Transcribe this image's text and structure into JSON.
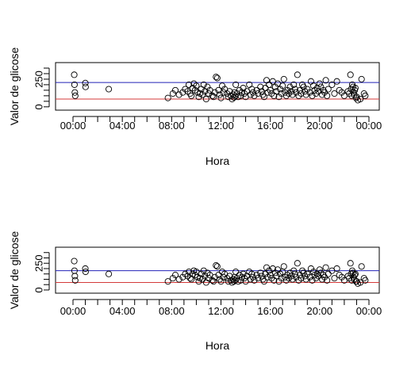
{
  "chart_data": [
    {
      "type": "scatter",
      "title": "",
      "xlabel": "Hora",
      "ylabel": "Valor de glicose",
      "x_ticks": [
        "00:00",
        "04:00",
        "08:00",
        "12:00",
        "16:00",
        "20:00",
        "00:00"
      ],
      "x_range_hours": [
        0,
        24
      ],
      "y_ticks": [
        "0",
        "250"
      ],
      "y_tick_values": [
        0,
        250
      ],
      "ylim": [
        -30,
        400
      ],
      "reference_lines": [
        {
          "value": 220,
          "color": "#2323b8"
        },
        {
          "value": 70,
          "color": "#d43a3a"
        }
      ],
      "points": [
        [
          0.1,
          290
        ],
        [
          0.12,
          200
        ],
        [
          0.15,
          130
        ],
        [
          0.18,
          100
        ],
        [
          1.0,
          215
        ],
        [
          1.02,
          180
        ],
        [
          2.9,
          160
        ],
        [
          7.7,
          80
        ],
        [
          8.1,
          120
        ],
        [
          8.3,
          150
        ],
        [
          8.6,
          110
        ],
        [
          8.9,
          130
        ],
        [
          9.1,
          160
        ],
        [
          9.3,
          140
        ],
        [
          9.4,
          200
        ],
        [
          9.5,
          120
        ],
        [
          9.6,
          100
        ],
        [
          9.7,
          170
        ],
        [
          9.8,
          210
        ],
        [
          9.9,
          150
        ],
        [
          10.0,
          190
        ],
        [
          10.1,
          130
        ],
        [
          10.2,
          90
        ],
        [
          10.3,
          120
        ],
        [
          10.4,
          160
        ],
        [
          10.5,
          110
        ],
        [
          10.6,
          200
        ],
        [
          10.7,
          140
        ],
        [
          10.8,
          70
        ],
        [
          10.9,
          180
        ],
        [
          11.0,
          120
        ],
        [
          11.1,
          150
        ],
        [
          11.3,
          100
        ],
        [
          11.4,
          90
        ],
        [
          11.5,
          130
        ],
        [
          11.6,
          270
        ],
        [
          11.7,
          260
        ],
        [
          11.8,
          150
        ],
        [
          11.9,
          110
        ],
        [
          12.0,
          80
        ],
        [
          12.1,
          190
        ],
        [
          12.2,
          130
        ],
        [
          12.3,
          160
        ],
        [
          12.5,
          120
        ],
        [
          12.6,
          90
        ],
        [
          12.7,
          140
        ],
        [
          12.8,
          100
        ],
        [
          12.9,
          70
        ],
        [
          13.0,
          110
        ],
        [
          13.05,
          85
        ],
        [
          13.1,
          130
        ],
        [
          13.15,
          95
        ],
        [
          13.2,
          200
        ],
        [
          13.3,
          120
        ],
        [
          13.4,
          90
        ],
        [
          13.5,
          150
        ],
        [
          13.6,
          100
        ],
        [
          13.7,
          130
        ],
        [
          13.8,
          170
        ],
        [
          13.9,
          120
        ],
        [
          14.0,
          90
        ],
        [
          14.1,
          140
        ],
        [
          14.3,
          200
        ],
        [
          14.4,
          110
        ],
        [
          14.5,
          160
        ],
        [
          14.6,
          130
        ],
        [
          14.7,
          100
        ],
        [
          14.9,
          150
        ],
        [
          15.0,
          120
        ],
        [
          15.2,
          180
        ],
        [
          15.3,
          140
        ],
        [
          15.4,
          110
        ],
        [
          15.5,
          90
        ],
        [
          15.6,
          170
        ],
        [
          15.7,
          240
        ],
        [
          15.8,
          130
        ],
        [
          15.9,
          200
        ],
        [
          16.0,
          150
        ],
        [
          16.1,
          120
        ],
        [
          16.2,
          230
        ],
        [
          16.3,
          100
        ],
        [
          16.4,
          180
        ],
        [
          16.5,
          140
        ],
        [
          16.6,
          210
        ],
        [
          16.7,
          90
        ],
        [
          16.8,
          160
        ],
        [
          16.9,
          120
        ],
        [
          17.0,
          190
        ],
        [
          17.1,
          250
        ],
        [
          17.2,
          130
        ],
        [
          17.3,
          100
        ],
        [
          17.4,
          150
        ],
        [
          17.5,
          120
        ],
        [
          17.6,
          180
        ],
        [
          17.7,
          140
        ],
        [
          17.8,
          110
        ],
        [
          17.9,
          200
        ],
        [
          18.0,
          160
        ],
        [
          18.1,
          130
        ],
        [
          18.2,
          290
        ],
        [
          18.3,
          100
        ],
        [
          18.4,
          150
        ],
        [
          18.5,
          120
        ],
        [
          18.6,
          200
        ],
        [
          18.7,
          180
        ],
        [
          18.8,
          140
        ],
        [
          18.9,
          110
        ],
        [
          19.0,
          160
        ],
        [
          19.2,
          130
        ],
        [
          19.3,
          230
        ],
        [
          19.4,
          100
        ],
        [
          19.5,
          190
        ],
        [
          19.6,
          150
        ],
        [
          19.7,
          120
        ],
        [
          19.8,
          170
        ],
        [
          19.9,
          140
        ],
        [
          20.0,
          210
        ],
        [
          20.1,
          180
        ],
        [
          20.2,
          110
        ],
        [
          20.3,
          150
        ],
        [
          20.4,
          130
        ],
        [
          20.5,
          240
        ],
        [
          20.6,
          100
        ],
        [
          20.7,
          160
        ],
        [
          21.0,
          200
        ],
        [
          21.2,
          120
        ],
        [
          21.4,
          230
        ],
        [
          21.6,
          150
        ],
        [
          21.8,
          130
        ],
        [
          22.0,
          100
        ],
        [
          22.3,
          140
        ],
        [
          22.4,
          120
        ],
        [
          22.5,
          290
        ],
        [
          22.55,
          160
        ],
        [
          22.6,
          100
        ],
        [
          22.65,
          200
        ],
        [
          22.7,
          180
        ],
        [
          22.75,
          130
        ],
        [
          22.8,
          110
        ],
        [
          22.85,
          150
        ],
        [
          22.9,
          170
        ],
        [
          22.95,
          80
        ],
        [
          23.0,
          90
        ],
        [
          23.1,
          60
        ],
        [
          23.3,
          70
        ],
        [
          23.4,
          250
        ],
        [
          23.6,
          120
        ],
        [
          23.7,
          100
        ]
      ]
    },
    {
      "type": "scatter",
      "title": "",
      "xlabel": "Hora",
      "ylabel": "Valor de glicose",
      "x_ticks": [
        "00:00",
        "04:00",
        "08:00",
        "12:00",
        "16:00",
        "20:00",
        "00:00"
      ],
      "x_range_hours": [
        0,
        24
      ],
      "y_ticks": [
        "0",
        "250"
      ],
      "y_tick_values": [
        0,
        250
      ],
      "ylim": [
        -30,
        400
      ],
      "reference_lines": [
        {
          "value": 180,
          "color": "#2323b8"
        },
        {
          "value": 70,
          "color": "#d43a3a"
        }
      ],
      "points": [
        [
          0.1,
          270
        ],
        [
          0.12,
          180
        ],
        [
          0.15,
          130
        ],
        [
          0.18,
          90
        ],
        [
          1.0,
          200
        ],
        [
          1.02,
          170
        ],
        [
          2.9,
          150
        ],
        [
          7.7,
          80
        ],
        [
          8.1,
          110
        ],
        [
          8.3,
          140
        ],
        [
          8.6,
          100
        ],
        [
          8.9,
          120
        ],
        [
          9.1,
          150
        ],
        [
          9.3,
          130
        ],
        [
          9.4,
          170
        ],
        [
          9.5,
          110
        ],
        [
          9.6,
          100
        ],
        [
          9.7,
          150
        ],
        [
          9.8,
          180
        ],
        [
          9.9,
          140
        ],
        [
          10.0,
          170
        ],
        [
          10.1,
          120
        ],
        [
          10.2,
          80
        ],
        [
          10.3,
          110
        ],
        [
          10.4,
          150
        ],
        [
          10.5,
          100
        ],
        [
          10.6,
          180
        ],
        [
          10.7,
          130
        ],
        [
          10.8,
          70
        ],
        [
          10.9,
          160
        ],
        [
          11.0,
          110
        ],
        [
          11.1,
          140
        ],
        [
          11.3,
          90
        ],
        [
          11.4,
          80
        ],
        [
          11.5,
          120
        ],
        [
          11.6,
          230
        ],
        [
          11.7,
          220
        ],
        [
          11.8,
          140
        ],
        [
          11.9,
          100
        ],
        [
          12.0,
          80
        ],
        [
          12.1,
          170
        ],
        [
          12.2,
          120
        ],
        [
          12.3,
          150
        ],
        [
          12.5,
          110
        ],
        [
          12.6,
          80
        ],
        [
          12.7,
          130
        ],
        [
          12.8,
          90
        ],
        [
          12.9,
          70
        ],
        [
          13.0,
          100
        ],
        [
          13.05,
          80
        ],
        [
          13.1,
          120
        ],
        [
          13.15,
          90
        ],
        [
          13.2,
          170
        ],
        [
          13.3,
          110
        ],
        [
          13.4,
          80
        ],
        [
          13.5,
          140
        ],
        [
          13.6,
          90
        ],
        [
          13.7,
          120
        ],
        [
          13.8,
          150
        ],
        [
          13.9,
          110
        ],
        [
          14.0,
          80
        ],
        [
          14.1,
          130
        ],
        [
          14.3,
          170
        ],
        [
          14.4,
          100
        ],
        [
          14.5,
          150
        ],
        [
          14.6,
          120
        ],
        [
          14.7,
          90
        ],
        [
          14.9,
          140
        ],
        [
          15.0,
          110
        ],
        [
          15.2,
          160
        ],
        [
          15.3,
          130
        ],
        [
          15.4,
          100
        ],
        [
          15.5,
          80
        ],
        [
          15.6,
          150
        ],
        [
          15.7,
          210
        ],
        [
          15.8,
          120
        ],
        [
          15.9,
          180
        ],
        [
          16.0,
          140
        ],
        [
          16.1,
          110
        ],
        [
          16.2,
          200
        ],
        [
          16.3,
          90
        ],
        [
          16.4,
          160
        ],
        [
          16.5,
          130
        ],
        [
          16.6,
          190
        ],
        [
          16.7,
          80
        ],
        [
          16.8,
          150
        ],
        [
          16.9,
          110
        ],
        [
          17.0,
          170
        ],
        [
          17.1,
          220
        ],
        [
          17.2,
          120
        ],
        [
          17.3,
          90
        ],
        [
          17.4,
          140
        ],
        [
          17.5,
          110
        ],
        [
          17.6,
          160
        ],
        [
          17.7,
          130
        ],
        [
          17.8,
          100
        ],
        [
          17.9,
          180
        ],
        [
          18.0,
          150
        ],
        [
          18.1,
          120
        ],
        [
          18.2,
          250
        ],
        [
          18.3,
          90
        ],
        [
          18.4,
          140
        ],
        [
          18.5,
          110
        ],
        [
          18.6,
          180
        ],
        [
          18.7,
          160
        ],
        [
          18.8,
          130
        ],
        [
          18.9,
          100
        ],
        [
          19.0,
          150
        ],
        [
          19.2,
          120
        ],
        [
          19.3,
          200
        ],
        [
          19.4,
          90
        ],
        [
          19.5,
          170
        ],
        [
          19.6,
          140
        ],
        [
          19.7,
          110
        ],
        [
          19.8,
          150
        ],
        [
          19.9,
          130
        ],
        [
          20.0,
          190
        ],
        [
          20.1,
          160
        ],
        [
          20.2,
          100
        ],
        [
          20.3,
          140
        ],
        [
          20.4,
          120
        ],
        [
          20.5,
          210
        ],
        [
          20.6,
          90
        ],
        [
          20.7,
          150
        ],
        [
          21.0,
          180
        ],
        [
          21.2,
          110
        ],
        [
          21.4,
          200
        ],
        [
          21.6,
          140
        ],
        [
          21.8,
          120
        ],
        [
          22.0,
          90
        ],
        [
          22.3,
          130
        ],
        [
          22.4,
          110
        ],
        [
          22.5,
          250
        ],
        [
          22.55,
          150
        ],
        [
          22.6,
          90
        ],
        [
          22.65,
          180
        ],
        [
          22.7,
          160
        ],
        [
          22.75,
          120
        ],
        [
          22.8,
          100
        ],
        [
          22.85,
          140
        ],
        [
          22.9,
          150
        ],
        [
          22.95,
          80
        ],
        [
          23.0,
          80
        ],
        [
          23.1,
          60
        ],
        [
          23.3,
          70
        ],
        [
          23.4,
          220
        ],
        [
          23.6,
          110
        ],
        [
          23.7,
          90
        ]
      ]
    }
  ]
}
